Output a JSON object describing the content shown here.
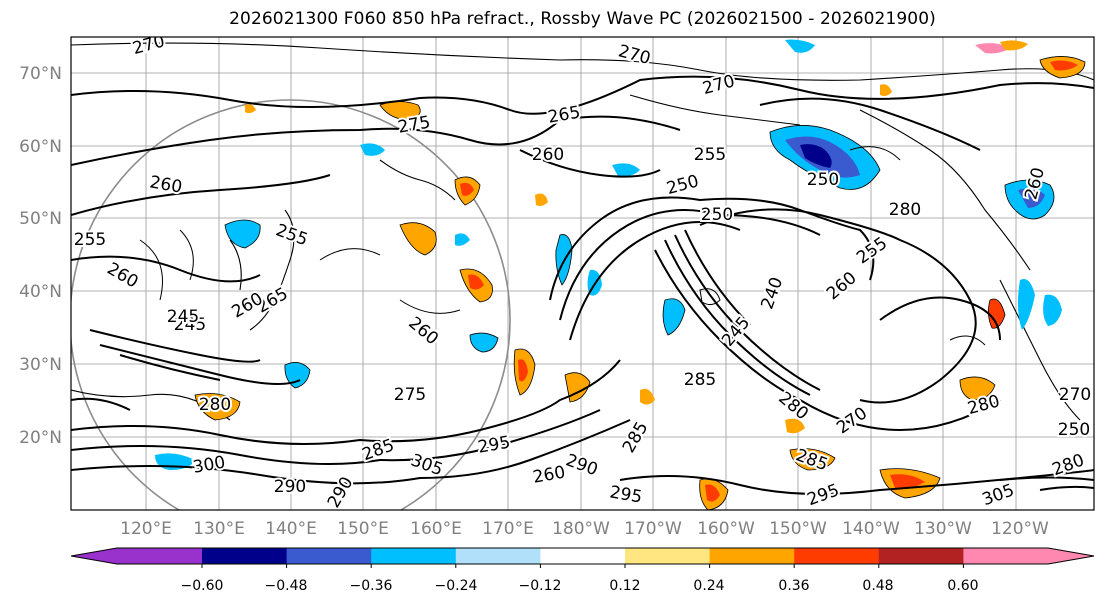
{
  "title": "2026021300 F060 850 hPa refract., Rossby Wave PC (2026021500 - 2026021900)",
  "lat_labels": [
    "70°N",
    "60°N",
    "50°N",
    "40°N",
    "30°N",
    "20°N"
  ],
  "lon_labels": [
    "120°E",
    "130°E",
    "140°E",
    "150°E",
    "160°E",
    "170°E",
    "180°W",
    "170°W",
    "160°W",
    "150°W",
    "140°W",
    "130°W",
    "120°W"
  ],
  "colorbar": {
    "ticks": [
      "−0.60",
      "−0.48",
      "−0.36",
      "−0.24",
      "−0.12",
      "0.12",
      "0.24",
      "0.36",
      "0.48",
      "0.60"
    ],
    "colors": [
      "#9932cc",
      "#00008b",
      "#3a5bcf",
      "#00bfff",
      "#b0e0fa",
      "#ffffff",
      "#ffe680",
      "#ffa500",
      "#ff3c00",
      "#b22222",
      "#ff88b0"
    ]
  },
  "contour_labels": [
    "270",
    "270",
    "270",
    "275",
    "265",
    "260",
    "260",
    "255",
    "250",
    "250",
    "255",
    "260",
    "255",
    "260",
    "265",
    "240",
    "245",
    "260",
    "245",
    "250",
    "260",
    "275",
    "285",
    "280",
    "270",
    "280",
    "285",
    "295",
    "300",
    "305",
    "290",
    "260",
    "290",
    "295",
    "280",
    "285",
    "295",
    "305",
    "290",
    "260",
    "250",
    "280",
    "280",
    "285",
    "255",
    "270",
    "245"
  ]
}
